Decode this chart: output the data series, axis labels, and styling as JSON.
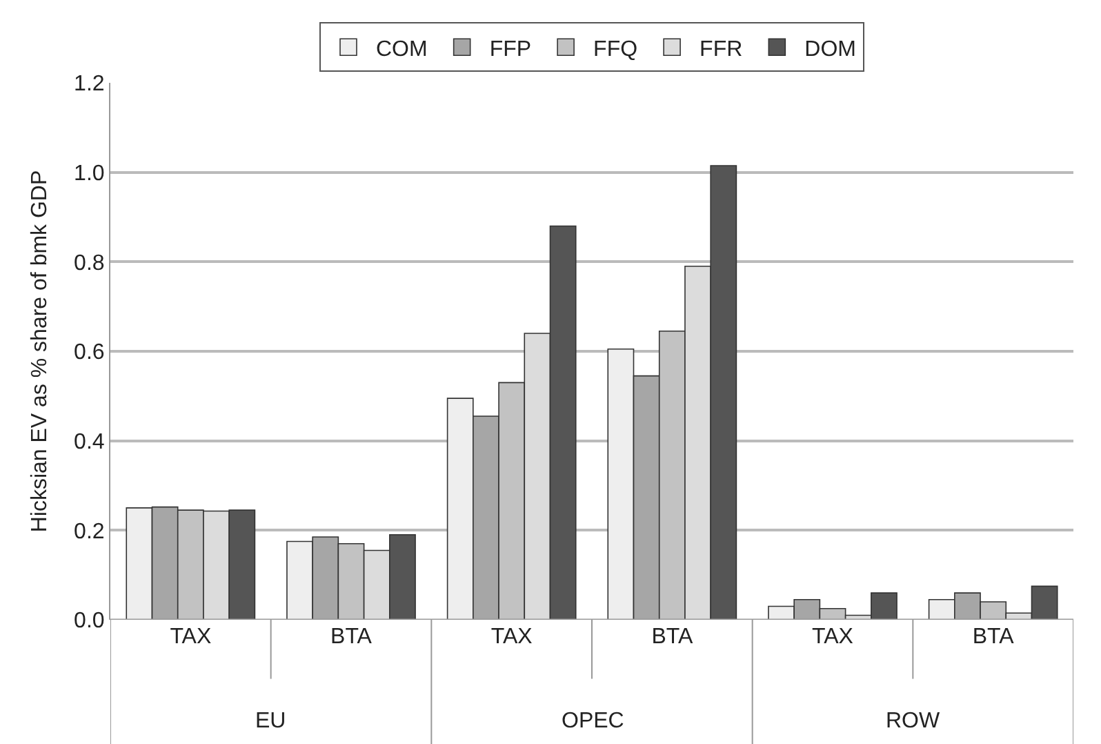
{
  "chart_data": {
    "type": "bar",
    "ylabel": "Hicksian EV as % share of bmk GDP",
    "categories": [
      "TAX",
      "BTA",
      "TAX",
      "BTA",
      "TAX",
      "BTA"
    ],
    "series": [
      {
        "name": "COM",
        "color": "#eeeeee",
        "values": [
          0.25,
          0.175,
          0.495,
          0.605,
          0.03,
          0.045
        ]
      },
      {
        "name": "FFP",
        "color": "#a6a6a6",
        "values": [
          0.252,
          0.185,
          0.455,
          0.545,
          0.045,
          0.06
        ]
      },
      {
        "name": "FFQ",
        "color": "#c2c2c2",
        "values": [
          0.245,
          0.17,
          0.53,
          0.645,
          0.025,
          0.04
        ]
      },
      {
        "name": "FFR",
        "color": "#dcdcdc",
        "values": [
          0.243,
          0.155,
          0.64,
          0.79,
          0.01,
          0.015
        ]
      },
      {
        "name": "DOM",
        "color": "#555555",
        "values": [
          0.245,
          0.19,
          0.88,
          1.015,
          0.06,
          0.075
        ]
      }
    ],
    "annotations": [
      "EU",
      "OPEC",
      "ROW"
    ],
    "ylim": [
      0,
      1.2
    ],
    "yticks": [
      {
        "value": 0,
        "label": "0.0"
      },
      {
        "value": 0.2,
        "label": "0.2"
      },
      {
        "value": 0.4,
        "label": "0.4"
      },
      {
        "value": 0.6,
        "label": "0.6"
      },
      {
        "value": 0.8,
        "label": "0.8"
      },
      {
        "value": 1.0,
        "label": "1.0"
      },
      {
        "value": 1.2,
        "label": "1.2"
      }
    ],
    "grid": "y",
    "legend": "top"
  }
}
